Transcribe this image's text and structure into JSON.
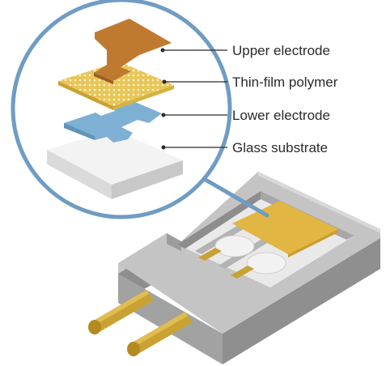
{
  "labels": {
    "upper_electrode": "Upper electrode",
    "thin_film_polymer": "Thin-film polymer",
    "lower_electrode": "Lower electrode",
    "glass_substrate": "Glass substrate"
  },
  "colors": {
    "magnifier_ring": "#6f9cc3",
    "upper_electrode": "#c07a30",
    "thin_film_polymer": "#e8c65a",
    "lower_electrode": "#7eb0d4",
    "glass_substrate": "#eeeeee",
    "housing": "#b9b9b9",
    "pins": "#c9a233",
    "sensor_element": "#e2b642"
  }
}
